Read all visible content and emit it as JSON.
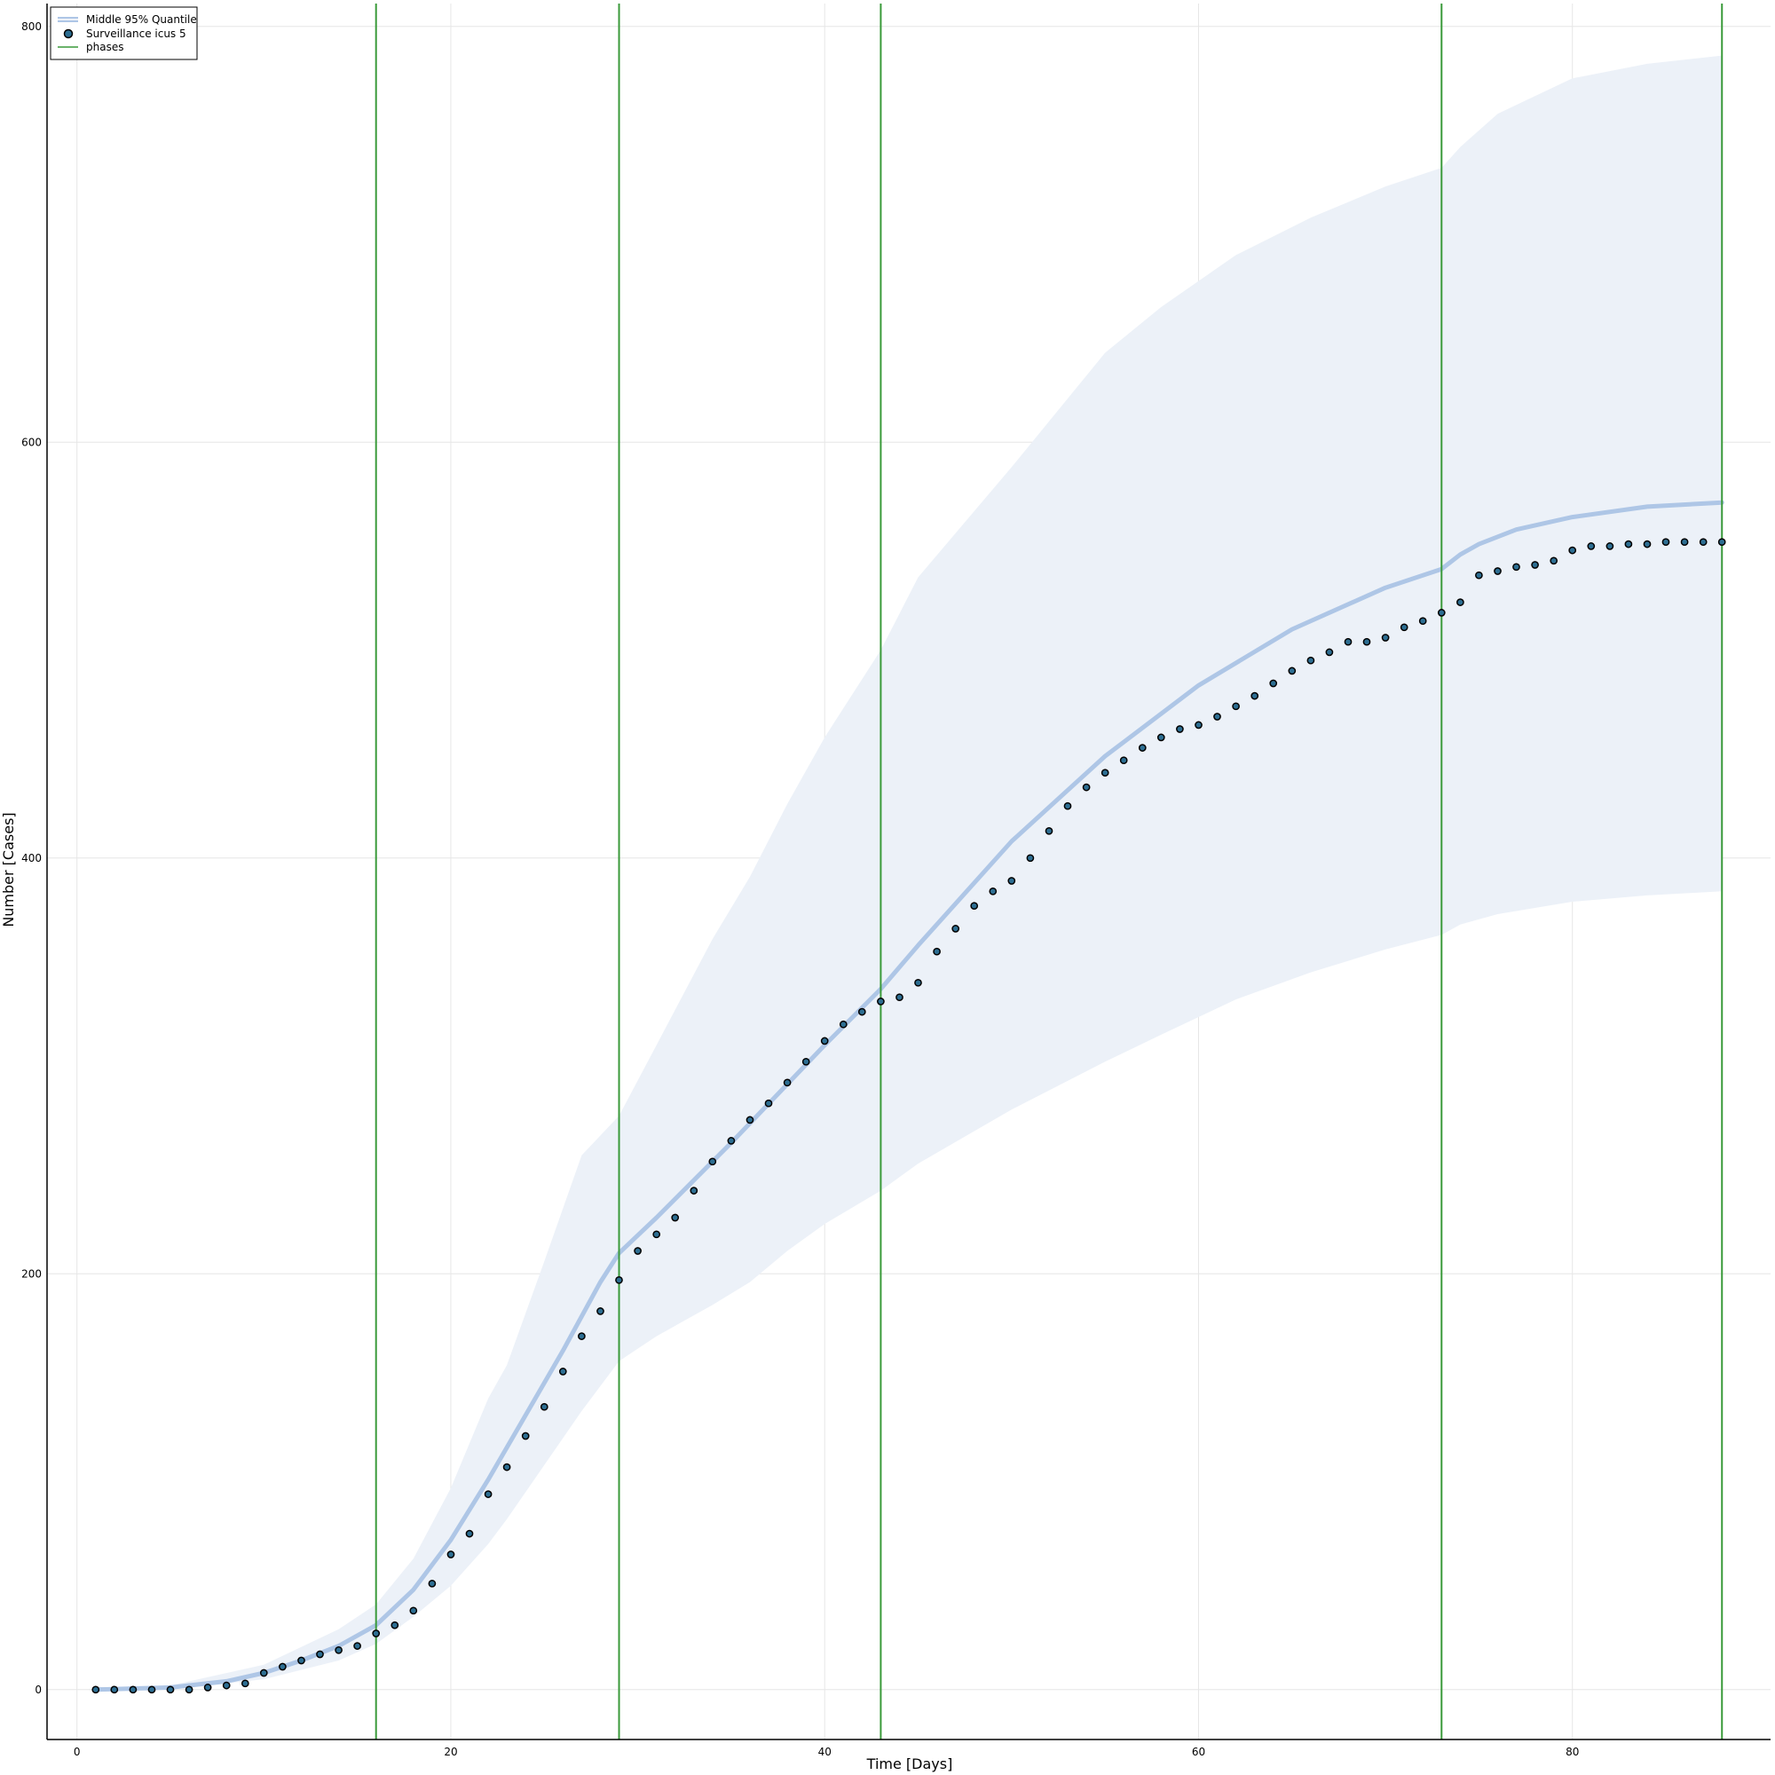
{
  "chart_data": {
    "type": "line",
    "title": "",
    "xlabel": "Time [Days]",
    "ylabel": "Number [Cases]",
    "xlim": [
      -1.6,
      90.6
    ],
    "ylim": [
      -24,
      811
    ],
    "xticks": [
      0,
      20,
      40,
      60,
      80
    ],
    "yticks": [
      0,
      200,
      400,
      600,
      800
    ],
    "grid": true,
    "legend_position": "top-left",
    "legend": [
      {
        "label": "Middle 95% Quantile",
        "kind": "band"
      },
      {
        "label": "Surveillance icus 5",
        "kind": "marker"
      },
      {
        "label": "phases",
        "kind": "line"
      }
    ],
    "colors": {
      "band_fill": "#ecf1f8",
      "median_line": "#aec6e6",
      "marker_fill": "#2d6e92",
      "marker_edge": "#000000",
      "phase_line": "#3a9a3a",
      "grid": "#e6e6e6"
    },
    "band": {
      "name": "Middle 95% Quantile",
      "x": [
        1,
        5,
        10,
        14,
        16,
        18,
        20,
        22,
        23,
        25,
        27,
        29,
        31,
        34,
        36,
        38,
        40,
        43,
        45,
        50,
        55,
        58,
        62,
        66,
        70,
        73,
        74,
        76,
        80,
        84,
        88
      ],
      "lower": [
        0,
        0,
        5,
        14,
        22,
        35,
        50,
        70,
        82,
        108,
        134,
        158,
        170,
        185,
        196,
        211,
        224,
        240,
        253,
        279,
        302,
        315,
        332,
        345,
        356,
        363,
        368,
        373,
        379,
        382,
        384
      ],
      "upper": [
        0,
        2,
        12,
        29,
        41,
        63,
        97,
        140,
        156,
        206,
        257,
        276,
        310,
        361,
        391,
        426,
        458,
        500,
        535,
        588,
        643,
        665,
        690,
        708,
        723,
        732,
        742,
        758,
        775,
        782,
        786
      ]
    },
    "median": {
      "name": "Middle 95% Quantile",
      "x": [
        1,
        5,
        8,
        10,
        12,
        14,
        16,
        18,
        20,
        22,
        24,
        26,
        28,
        29,
        31,
        35,
        40,
        43,
        45,
        50,
        55,
        60,
        65,
        70,
        73,
        74,
        75,
        77,
        80,
        84,
        88
      ],
      "y": [
        0,
        1,
        4,
        8,
        14,
        21,
        31,
        48,
        72,
        101,
        132,
        163,
        196,
        210,
        227,
        263,
        310,
        337,
        358,
        408,
        449,
        483,
        510,
        530,
        539,
        546,
        551,
        558,
        564,
        569,
        571
      ]
    },
    "series": [
      {
        "name": "Surveillance icus 5",
        "x": [
          1,
          2,
          3,
          4,
          5,
          6,
          7,
          8,
          9,
          10,
          11,
          12,
          13,
          14,
          15,
          16,
          17,
          18,
          19,
          20,
          21,
          22,
          23,
          24,
          25,
          26,
          27,
          28,
          29,
          30,
          31,
          32,
          33,
          34,
          35,
          36,
          37,
          38,
          39,
          40,
          41,
          42,
          43,
          44,
          45,
          46,
          47,
          48,
          49,
          50,
          51,
          52,
          53,
          54,
          55,
          56,
          57,
          58,
          59,
          60,
          61,
          62,
          63,
          64,
          65,
          66,
          67,
          68,
          69,
          70,
          71,
          72,
          73,
          74,
          75,
          76,
          77,
          78,
          79,
          80,
          81,
          82,
          83,
          84,
          85,
          86,
          87,
          88
        ],
        "values": [
          0,
          0,
          0,
          0,
          0,
          0,
          1,
          2,
          3,
          8,
          11,
          14,
          17,
          19,
          21,
          27,
          31,
          38,
          51,
          65,
          75,
          94,
          107,
          122,
          136,
          153,
          170,
          182,
          197,
          211,
          219,
          227,
          240,
          254,
          264,
          274,
          282,
          292,
          302,
          312,
          320,
          326,
          331,
          333,
          340,
          355,
          366,
          377,
          384,
          389,
          400,
          413,
          425,
          434,
          441,
          447,
          453,
          458,
          462,
          464,
          468,
          473,
          478,
          484,
          490,
          495,
          499,
          504,
          504,
          506,
          511,
          514,
          518,
          523,
          536,
          538,
          540,
          541,
          543,
          548,
          550,
          550,
          551,
          551,
          552,
          552,
          552,
          552
        ]
      }
    ],
    "phases": [
      16,
      29,
      43,
      73,
      88
    ]
  }
}
